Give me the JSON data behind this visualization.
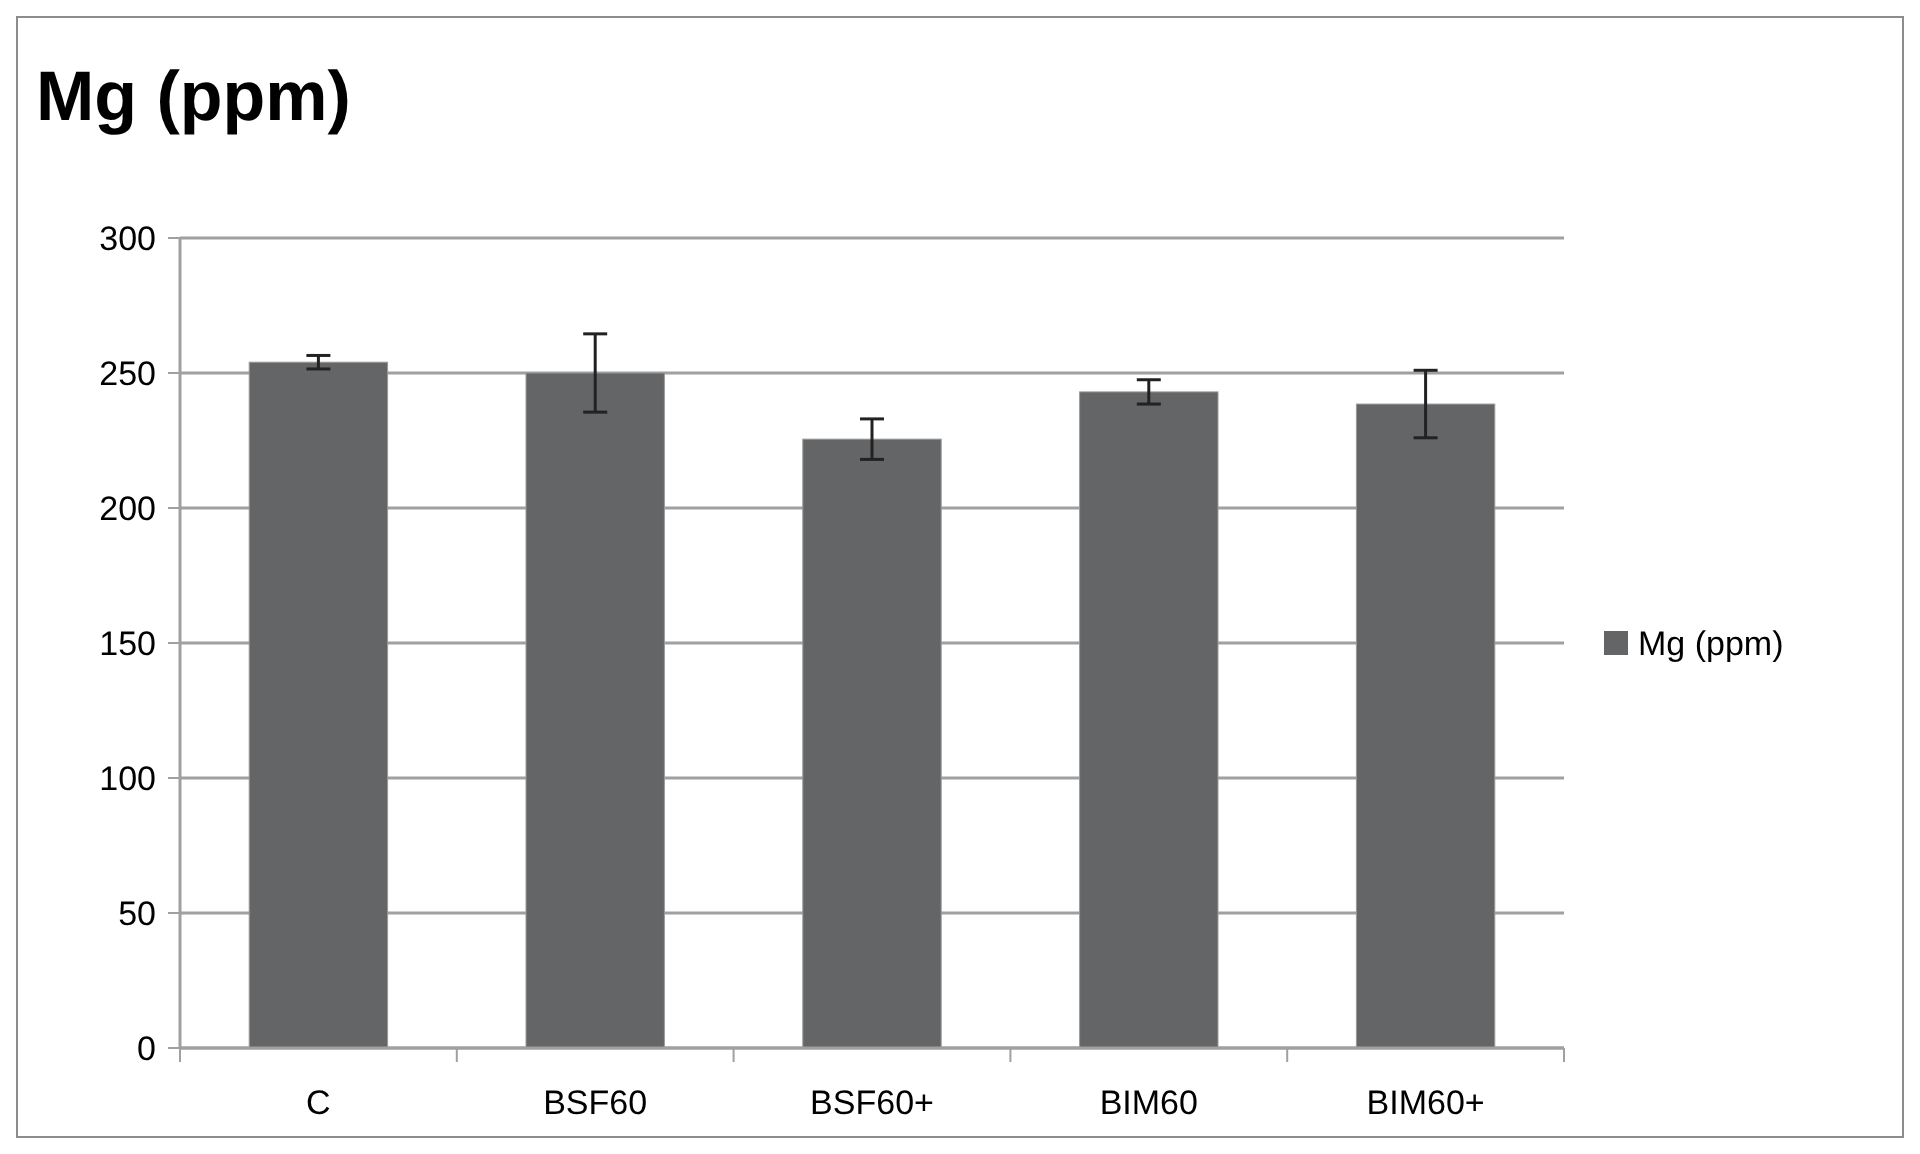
{
  "chart_data": {
    "type": "bar",
    "title": "Mg (ppm)",
    "categories": [
      "C",
      "BSF60",
      "BSF60+",
      "BIM60",
      "BIM60+"
    ],
    "series": [
      {
        "name": "Mg (ppm)",
        "color": "#646567",
        "values": [
          254,
          250,
          225.5,
          243,
          238.5
        ],
        "errors": [
          2.5,
          14.5,
          7.5,
          4.5,
          12.5
        ]
      }
    ],
    "ylim": [
      0,
      300
    ],
    "yticks": [
      0,
      50,
      100,
      150,
      200,
      250,
      300
    ],
    "grid": "y",
    "legend": "right"
  }
}
